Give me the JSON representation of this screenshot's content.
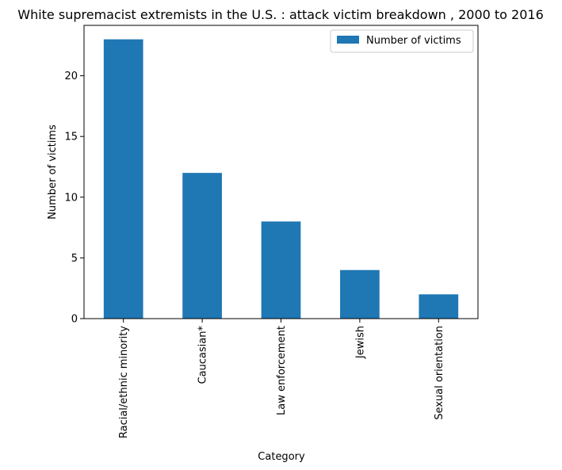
{
  "chart_data": {
    "type": "bar",
    "title": "White supremacist extremists in the U.S. : attack victim breakdown , 2000 to 2016",
    "xlabel": "Category",
    "ylabel": "Number of victims",
    "categories": [
      "Racial/ethnic minority",
      "Caucasian*",
      "Law enforcement",
      "Jewish",
      "Sexual orientation"
    ],
    "series": [
      {
        "name": "Number of victims",
        "values": [
          23,
          12,
          8,
          4,
          2
        ]
      }
    ],
    "ylim": [
      0,
      24.15
    ],
    "yticks": [
      0,
      5,
      10,
      15,
      20
    ],
    "grid": false,
    "legend": "top-right",
    "bar_color": "#1f77b4"
  }
}
